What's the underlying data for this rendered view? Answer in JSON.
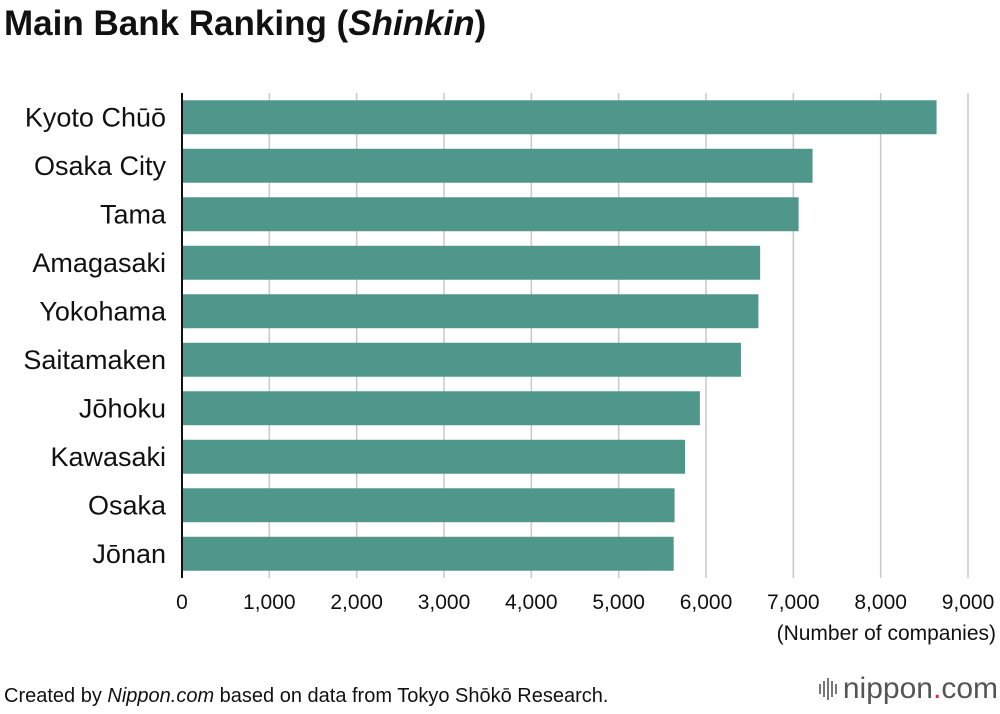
{
  "title": {
    "main": "Main Bank Ranking (",
    "italic": "Shinkin",
    "close": ")"
  },
  "chart_data": {
    "type": "bar",
    "orientation": "horizontal",
    "categories": [
      "Kyoto Chūō",
      "Osaka City",
      "Tama",
      "Amagasaki",
      "Yokohama",
      "Saitamaken",
      "Jōhoku",
      "Kawasaki",
      "Osaka",
      "Jōnan"
    ],
    "values": [
      8640,
      7220,
      7060,
      6620,
      6600,
      6400,
      5930,
      5760,
      5640,
      5630
    ],
    "xlabel": "(Number of companies)",
    "xlim": [
      0,
      9000
    ],
    "xticks": [
      0,
      1000,
      2000,
      3000,
      4000,
      5000,
      6000,
      7000,
      8000,
      9000
    ],
    "xtick_labels": [
      "0",
      "1,000",
      "2,000",
      "3,000",
      "4,000",
      "5,000",
      "6,000",
      "7,000",
      "8,000",
      "9,000"
    ],
    "grid": "vertical",
    "bar_color": "#4f968b"
  },
  "footer": {
    "prefix": "Created by ",
    "italic": "Nippon.com",
    "suffix": " based on data from Tokyo Shōkō Research."
  },
  "logo": {
    "name": "nippon",
    "dot": ".",
    "tld": "com"
  }
}
